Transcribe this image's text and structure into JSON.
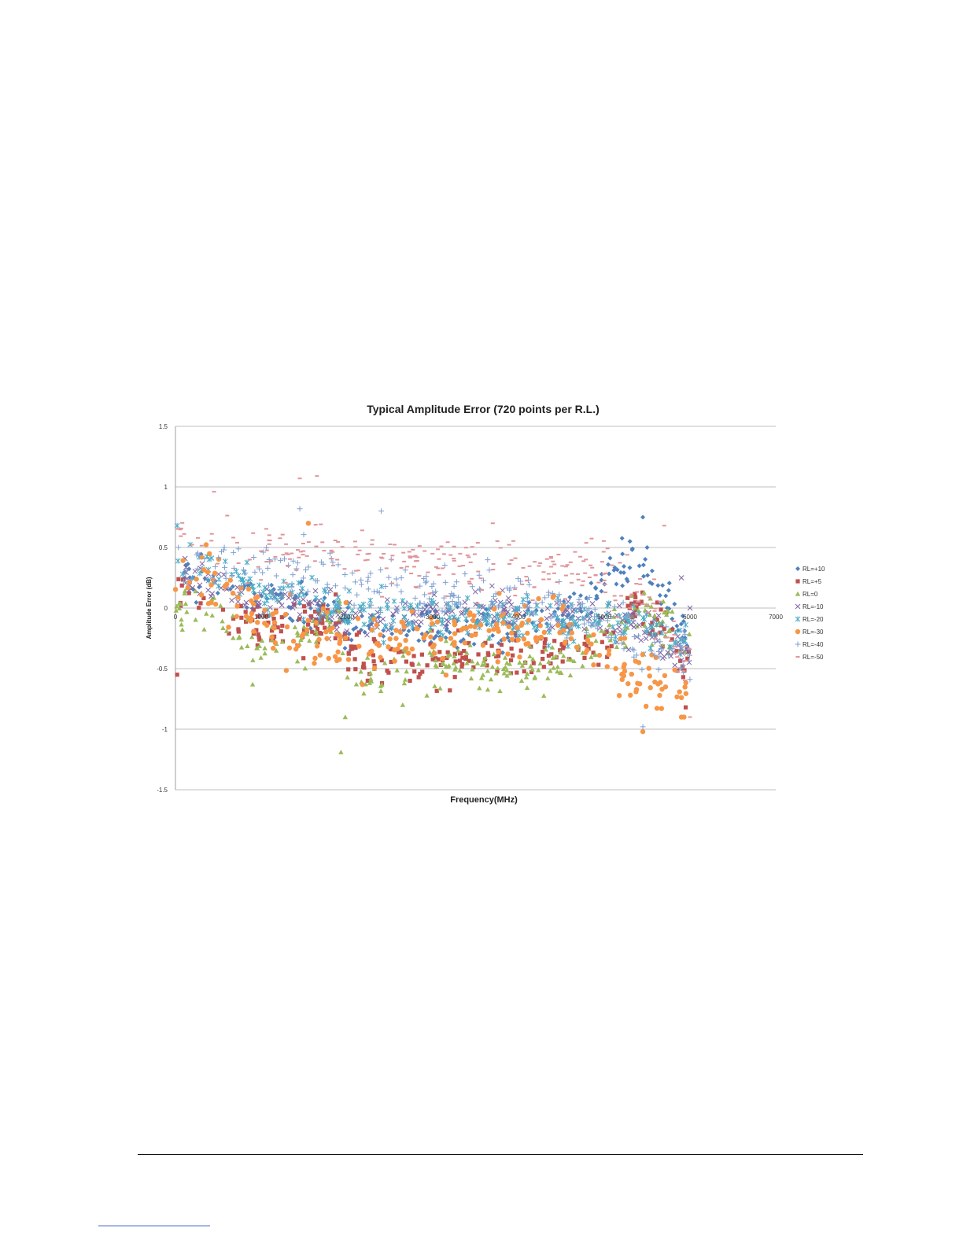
{
  "chart_data": {
    "type": "scatter",
    "title": "Typical Amplitude Error (720 points per R.L.)",
    "xlabel": "Frequency(MHz)",
    "ylabel": "Amplitude Error (dB)",
    "xlim": [
      0,
      7000
    ],
    "ylim": [
      -1.5,
      1.5
    ],
    "x_ticks": [
      0,
      1000,
      2000,
      3000,
      4000,
      5000,
      6000,
      7000
    ],
    "y_ticks": [
      1.5,
      1,
      0.5,
      0,
      -0.5,
      -1,
      -1.5
    ],
    "x_tick_labels": [
      "0",
      "1000",
      "2000",
      "3000",
      "4000",
      "5000",
      "6000",
      "7000"
    ],
    "y_tick_labels": [
      "1.5",
      "1",
      "0.5",
      "0",
      "-0.5",
      "-1",
      "-1.5"
    ],
    "grid": "horizontal",
    "legend_position": "right",
    "points_per_series": 720,
    "x_range_data": [
      0,
      6000
    ],
    "series": [
      {
        "name": "RL=+10",
        "marker": "diamond",
        "color": "#4f81bd",
        "profile": [
          [
            0,
            0.25
          ],
          [
            500,
            0.2
          ],
          [
            1000,
            0.05
          ],
          [
            1500,
            0.0
          ],
          [
            2000,
            -0.15
          ],
          [
            3000,
            -0.15
          ],
          [
            4000,
            -0.15
          ],
          [
            4800,
            0.0
          ],
          [
            5000,
            0.25
          ],
          [
            5400,
            0.45
          ],
          [
            5600,
            0.25
          ],
          [
            5800,
            0.0
          ],
          [
            6000,
            -0.35
          ]
        ],
        "spread": 0.18,
        "outliers": [
          [
            5450,
            0.75
          ],
          [
            5300,
            0.55
          ],
          [
            5500,
            0.5
          ]
        ]
      },
      {
        "name": "RL=+5",
        "marker": "square",
        "color": "#c0504d",
        "profile": [
          [
            0,
            0.15
          ],
          [
            500,
            0.0
          ],
          [
            1000,
            -0.2
          ],
          [
            1500,
            -0.15
          ],
          [
            1900,
            -0.05
          ],
          [
            2000,
            -0.35
          ],
          [
            2500,
            -0.4
          ],
          [
            3000,
            -0.45
          ],
          [
            4000,
            -0.35
          ],
          [
            5000,
            -0.3
          ],
          [
            5400,
            0.0
          ],
          [
            5800,
            -0.2
          ],
          [
            6000,
            -0.6
          ]
        ],
        "spread": 0.18,
        "outliers": [
          [
            20,
            -0.55
          ],
          [
            3200,
            -0.68
          ],
          [
            5950,
            -0.82
          ]
        ]
      },
      {
        "name": "RL=0",
        "marker": "triangle",
        "color": "#9bbb59",
        "profile": [
          [
            0,
            0.05
          ],
          [
            500,
            -0.1
          ],
          [
            1000,
            -0.3
          ],
          [
            1500,
            -0.25
          ],
          [
            1900,
            0.0
          ],
          [
            2000,
            -0.55
          ],
          [
            2200,
            -0.6
          ],
          [
            3000,
            -0.45
          ],
          [
            4000,
            -0.5
          ],
          [
            4500,
            -0.45
          ],
          [
            5000,
            -0.2
          ],
          [
            5500,
            0.0
          ],
          [
            6000,
            -0.35
          ]
        ],
        "spread": 0.18,
        "outliers": [
          [
            1930,
            -1.19
          ],
          [
            1980,
            -0.9
          ],
          [
            900,
            -0.63
          ],
          [
            2650,
            -0.8
          ]
        ]
      },
      {
        "name": "RL=-10",
        "marker": "x",
        "color": "#8064a2",
        "profile": [
          [
            0,
            0.3
          ],
          [
            500,
            0.2
          ],
          [
            1000,
            0.1
          ],
          [
            1500,
            0.05
          ],
          [
            2000,
            -0.1
          ],
          [
            3000,
            -0.05
          ],
          [
            4000,
            -0.05
          ],
          [
            5000,
            -0.1
          ],
          [
            5500,
            -0.2
          ],
          [
            6000,
            -0.4
          ]
        ],
        "spread": 0.15,
        "outliers": [
          [
            5900,
            0.25
          ],
          [
            6000,
            0.0
          ]
        ]
      },
      {
        "name": "RL=-20",
        "marker": "star",
        "color": "#4bacc6",
        "profile": [
          [
            0,
            0.4
          ],
          [
            500,
            0.3
          ],
          [
            1000,
            0.15
          ],
          [
            1500,
            0.1
          ],
          [
            2000,
            -0.05
          ],
          [
            3000,
            -0.05
          ],
          [
            4000,
            -0.1
          ],
          [
            5000,
            -0.1
          ],
          [
            5500,
            -0.15
          ],
          [
            6000,
            -0.3
          ]
        ],
        "spread": 0.15,
        "outliers": [
          [
            20,
            0.68
          ]
        ]
      },
      {
        "name": "RL=-30",
        "marker": "circle",
        "color": "#f79646",
        "profile": [
          [
            0,
            0.3
          ],
          [
            500,
            0.2
          ],
          [
            1000,
            -0.1
          ],
          [
            1500,
            -0.2
          ],
          [
            2000,
            -0.3
          ],
          [
            3000,
            -0.25
          ],
          [
            4000,
            -0.2
          ],
          [
            4500,
            -0.1
          ],
          [
            5000,
            -0.4
          ],
          [
            5500,
            -0.55
          ],
          [
            6000,
            -0.7
          ]
        ],
        "spread": 0.22,
        "outliers": [
          [
            5450,
            -1.02
          ],
          [
            5900,
            -0.9
          ],
          [
            1550,
            0.7
          ]
        ]
      },
      {
        "name": "RL=-40",
        "marker": "plus",
        "color": "#7f9fd0",
        "profile": [
          [
            0,
            0.35
          ],
          [
            500,
            0.35
          ],
          [
            1000,
            0.3
          ],
          [
            1500,
            0.3
          ],
          [
            2000,
            0.2
          ],
          [
            3000,
            0.1
          ],
          [
            4000,
            0.1
          ],
          [
            5000,
            -0.1
          ],
          [
            5500,
            -0.3
          ],
          [
            6000,
            -0.4
          ]
        ],
        "spread": 0.2,
        "outliers": [
          [
            1450,
            0.82
          ],
          [
            2400,
            0.8
          ],
          [
            5450,
            -0.98
          ]
        ]
      },
      {
        "name": "RL=-50",
        "marker": "dash",
        "color": "#e0949a",
        "profile": [
          [
            0,
            0.6
          ],
          [
            500,
            0.55
          ],
          [
            1000,
            0.4
          ],
          [
            1500,
            0.55
          ],
          [
            2000,
            0.45
          ],
          [
            3000,
            0.35
          ],
          [
            4000,
            0.35
          ],
          [
            5000,
            0.3
          ],
          [
            5500,
            0.1
          ],
          [
            6000,
            -0.5
          ]
        ],
        "spread": 0.22,
        "outliers": [
          [
            1450,
            1.07
          ],
          [
            1650,
            1.09
          ],
          [
            450,
            0.96
          ],
          [
            3700,
            0.7
          ],
          [
            5700,
            0.68
          ],
          [
            6000,
            -0.9
          ]
        ]
      }
    ]
  }
}
